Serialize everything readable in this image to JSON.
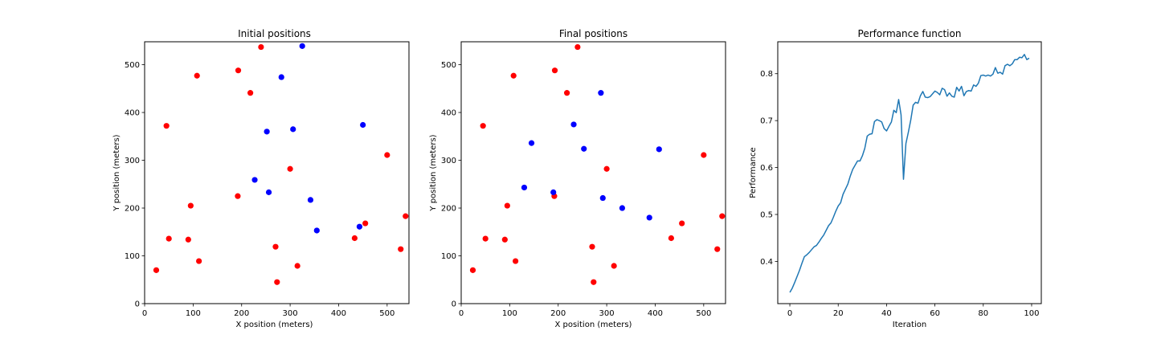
{
  "chart_data": [
    {
      "type": "scatter",
      "title": "Initial positions",
      "xlabel": "X position (meters)",
      "ylabel": "Y position (meters)",
      "xlim": [
        0,
        545
      ],
      "ylim": [
        0,
        548
      ],
      "xticks": [
        0,
        100,
        200,
        300,
        400,
        500
      ],
      "yticks": [
        0,
        100,
        200,
        300,
        400,
        500
      ],
      "grid": false,
      "series": [
        {
          "color": "#ff0000",
          "points": [
            [
              24,
              70
            ],
            [
              45,
              372
            ],
            [
              50,
              136
            ],
            [
              90,
              134
            ],
            [
              95,
              205
            ],
            [
              108,
              477
            ],
            [
              112,
              89
            ],
            [
              192,
              225
            ],
            [
              193,
              488
            ],
            [
              218,
              441
            ],
            [
              240,
              537
            ],
            [
              270,
              119
            ],
            [
              273,
              45
            ],
            [
              300,
              282
            ],
            [
              315,
              79
            ],
            [
              433,
              137
            ],
            [
              455,
              168
            ],
            [
              500,
              311
            ],
            [
              528,
              114
            ],
            [
              538,
              183
            ]
          ]
        },
        {
          "color": "#0000ff",
          "points": [
            [
              325,
              539
            ],
            [
              282,
              474
            ],
            [
              450,
              374
            ],
            [
              252,
              360
            ],
            [
              306,
              365
            ],
            [
              227,
              259
            ],
            [
              256,
              233
            ],
            [
              342,
              217
            ],
            [
              355,
              153
            ],
            [
              443,
              161
            ]
          ]
        }
      ]
    },
    {
      "type": "scatter",
      "title": "Final positions",
      "xlabel": "X position (meters)",
      "ylabel": "Y position (meters)",
      "xlim": [
        0,
        545
      ],
      "ylim": [
        0,
        548
      ],
      "xticks": [
        0,
        100,
        200,
        300,
        400,
        500
      ],
      "yticks": [
        0,
        100,
        200,
        300,
        400,
        500
      ],
      "grid": false,
      "series": [
        {
          "color": "#ff0000",
          "points": [
            [
              24,
              70
            ],
            [
              45,
              372
            ],
            [
              50,
              136
            ],
            [
              90,
              134
            ],
            [
              95,
              205
            ],
            [
              108,
              477
            ],
            [
              112,
              89
            ],
            [
              192,
              225
            ],
            [
              193,
              488
            ],
            [
              218,
              441
            ],
            [
              240,
              537
            ],
            [
              270,
              119
            ],
            [
              273,
              45
            ],
            [
              300,
              282
            ],
            [
              315,
              79
            ],
            [
              433,
              137
            ],
            [
              455,
              168
            ],
            [
              500,
              311
            ],
            [
              528,
              114
            ],
            [
              538,
              183
            ]
          ]
        },
        {
          "color": "#0000ff",
          "points": [
            [
              288,
              441
            ],
            [
              232,
              375
            ],
            [
              145,
              336
            ],
            [
              253,
              324
            ],
            [
              408,
              323
            ],
            [
              130,
              243
            ],
            [
              190,
              233
            ],
            [
              292,
              221
            ],
            [
              332,
              200
            ],
            [
              388,
              180
            ]
          ]
        }
      ]
    },
    {
      "type": "line",
      "title": "Performance function",
      "xlabel": "Iteration",
      "ylabel": "Performance",
      "xlim": [
        -5,
        104
      ],
      "ylim": [
        0.31,
        0.868
      ],
      "xticks": [
        0,
        20,
        40,
        60,
        80,
        100
      ],
      "yticks": [
        0.4,
        0.5,
        0.6,
        0.7,
        0.8
      ],
      "ytick_format": 1,
      "grid": false,
      "series": [
        {
          "color": "#1f77b4",
          "x": [
            0,
            1,
            2,
            3,
            4,
            5,
            6,
            7,
            8,
            9,
            10,
            11,
            12,
            13,
            14,
            15,
            16,
            17,
            18,
            19,
            20,
            21,
            22,
            23,
            24,
            25,
            26,
            27,
            28,
            29,
            30,
            31,
            32,
            33,
            34,
            35,
            36,
            37,
            38,
            39,
            40,
            41,
            42,
            43,
            44,
            45,
            46,
            47,
            48,
            49,
            50,
            51,
            52,
            53,
            54,
            55,
            56,
            57,
            58,
            59,
            60,
            61,
            62,
            63,
            64,
            65,
            66,
            67,
            68,
            69,
            70,
            71,
            72,
            73,
            74,
            75,
            76,
            77,
            78,
            79,
            80,
            81,
            82,
            83,
            84,
            85,
            86,
            87,
            88,
            89,
            90,
            91,
            92,
            93,
            94,
            95,
            96,
            97,
            98,
            99
          ],
          "y": [
            0.334,
            0.343,
            0.355,
            0.368,
            0.381,
            0.396,
            0.41,
            0.414,
            0.419,
            0.425,
            0.431,
            0.434,
            0.441,
            0.449,
            0.456,
            0.466,
            0.476,
            0.482,
            0.494,
            0.507,
            0.518,
            0.525,
            0.543,
            0.554,
            0.565,
            0.582,
            0.596,
            0.605,
            0.614,
            0.614,
            0.625,
            0.641,
            0.667,
            0.671,
            0.672,
            0.698,
            0.702,
            0.7,
            0.697,
            0.683,
            0.678,
            0.688,
            0.697,
            0.722,
            0.717,
            0.745,
            0.712,
            0.575,
            0.651,
            0.675,
            0.701,
            0.733,
            0.739,
            0.737,
            0.753,
            0.762,
            0.75,
            0.749,
            0.751,
            0.757,
            0.763,
            0.76,
            0.755,
            0.769,
            0.766,
            0.752,
            0.759,
            0.752,
            0.75,
            0.771,
            0.763,
            0.773,
            0.753,
            0.762,
            0.764,
            0.763,
            0.776,
            0.773,
            0.78,
            0.796,
            0.797,
            0.795,
            0.797,
            0.795,
            0.799,
            0.813,
            0.801,
            0.803,
            0.799,
            0.817,
            0.82,
            0.817,
            0.821,
            0.83,
            0.83,
            0.835,
            0.834,
            0.841,
            0.83,
            0.833
          ]
        }
      ]
    }
  ]
}
